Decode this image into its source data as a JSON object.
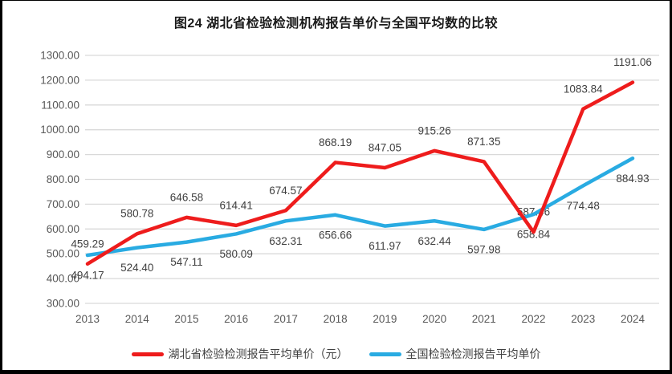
{
  "title": "图24 湖北省检验检测机构报告单价与全国平均数的比较",
  "chart_data": {
    "type": "line",
    "title": "图24 湖北省检验检测机构报告单价与全国平均数的比较",
    "categories": [
      "2013",
      "2014",
      "2015",
      "2016",
      "2017",
      "2018",
      "2019",
      "2020",
      "2021",
      "2022",
      "2023",
      "2024"
    ],
    "series": [
      {
        "name": "湖北省检验检测报告平均单价（元）",
        "color": "#ee1c1c",
        "label_position": "above",
        "values": [
          459.29,
          580.78,
          646.58,
          614.41,
          674.57,
          868.19,
          847.05,
          915.26,
          871.35,
          587.46,
          1083.84,
          1191.06
        ]
      },
      {
        "name": "全国检验检测报告平均单价",
        "color": "#29abe2",
        "label_position": "below",
        "values": [
          494.17,
          524.4,
          547.11,
          580.09,
          632.31,
          656.66,
          611.97,
          632.44,
          597.98,
          658.84,
          774.48,
          884.93
        ]
      }
    ],
    "y_axis": {
      "min": 300,
      "max": 1300,
      "step": 100,
      "tick_labels": [
        "300.00",
        "400.00",
        "500.00",
        "600.00",
        "700.00",
        "800.00",
        "900.00",
        "1000.00",
        "1100.00",
        "1200.00",
        "1300.00"
      ]
    },
    "grid": "horizontal",
    "legend_position": "bottom",
    "gridline_color": "#d9d9d9",
    "label_decimals": 2
  }
}
